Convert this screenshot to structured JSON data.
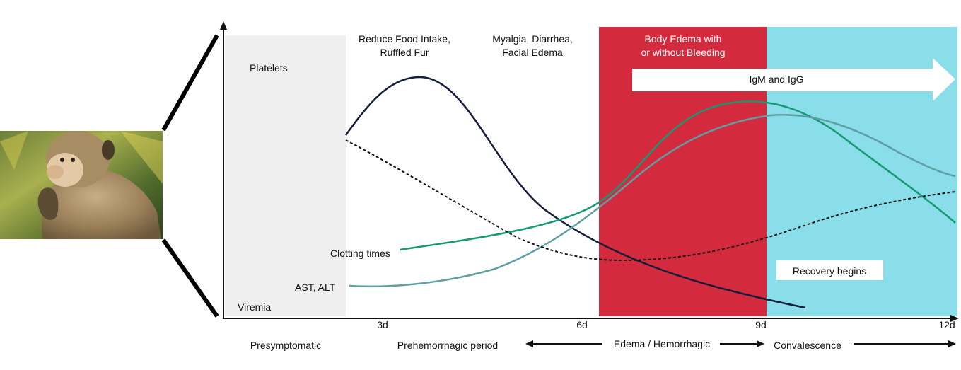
{
  "colors": {
    "presymptomatic_band": "#efefef",
    "hemorrhagic_band": "#d42a3d",
    "convalescence_band": "#8adeea",
    "virus_curve": "#141e3b",
    "clotting_curve": "#149a72",
    "liver_curve": "#5f9ea3",
    "platelet_curve": "#111111",
    "antibody_arrow": "#ffffff"
  },
  "image": {
    "subject": "macaque",
    "icon": "monkey-photo"
  },
  "symptoms": {
    "early_line1": "Reduce Food Intake,",
    "early_line2": "Ruffled Fur",
    "mid_line1": "Myalgia, Diarrhea,",
    "mid_line2": "Facial Edema",
    "late_line1": "Body Edema with",
    "late_line2": "or without Bleeding"
  },
  "antibody_label": "IgM and IgG",
  "recovery_label": "Recovery begins",
  "curve_labels": {
    "platelets": "Platelets",
    "clotting": "Clotting times",
    "liver": "AST, ALT",
    "viremia": "Viremia"
  },
  "x_ticks": [
    "3d",
    "6d",
    "9d",
    "12d"
  ],
  "phases": {
    "presymptomatic": "Presymptomatic",
    "prehemorrhagic": "Prehemorrhagic period",
    "edema": "Edema / Hemorrhagic",
    "convalescence": "Convalescence"
  }
}
